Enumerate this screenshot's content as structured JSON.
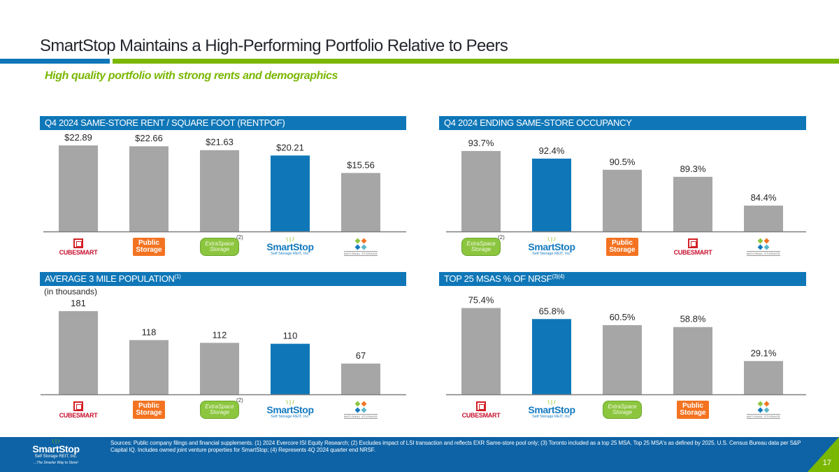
{
  "page": {
    "title": "SmartStop Maintains a High-Performing Portfolio Relative to Peers",
    "subtitle": "High quality portfolio with strong rents and demographics",
    "page_number": "17",
    "colors": {
      "brand_blue": "#0f77b8",
      "brand_green": "#7ab700",
      "bar_gray": "#a6a6a6",
      "highlight": "#0f77b8",
      "footer_blue": "#0e63a6"
    }
  },
  "panels": [
    {
      "header": "Q4 2024 SAME-STORE RENT / SQUARE FOOT (RENTPOF)",
      "header_sup": "",
      "note": ""
    },
    {
      "header": "Q4 2024 ENDING SAME-STORE OCCUPANCY",
      "header_sup": "",
      "note": ""
    },
    {
      "header": "AVERAGE 3 MILE POPULATION",
      "header_sup": "(1)",
      "note": "(in thousands)"
    },
    {
      "header": "TOP 25 MSAS % OF NRSF",
      "header_sup": "(3)(4)",
      "note": ""
    }
  ],
  "chart_data": [
    {
      "type": "bar",
      "title": "Q4 2024 SAME-STORE RENT / SQUARE FOOT (RENTPOF)",
      "categories": [
        "CubeSmart",
        "Public Storage",
        "Extra Space Storage",
        "SmartStop",
        "National Storage Affiliates"
      ],
      "values": [
        22.89,
        22.66,
        21.63,
        20.21,
        15.56
      ],
      "labels": [
        "$22.89",
        "$22.66",
        "$21.63",
        "$20.21",
        "$15.56"
      ],
      "highlight": "SmartStop",
      "footnotes": {
        "Extra Space Storage": "(2)"
      },
      "xlabel": "",
      "ylabel": "",
      "ylim": [
        0,
        24
      ]
    },
    {
      "type": "bar",
      "title": "Q4 2024 ENDING SAME-STORE OCCUPANCY",
      "categories": [
        "Extra Space Storage",
        "SmartStop",
        "Public Storage",
        "CubeSmart",
        "National Storage Affiliates"
      ],
      "values": [
        93.7,
        92.4,
        90.5,
        89.3,
        84.4
      ],
      "labels": [
        "93.7%",
        "92.4%",
        "90.5%",
        "89.3%",
        "84.4%"
      ],
      "highlight": "SmartStop",
      "footnotes": {
        "Extra Space Storage": "(2)"
      },
      "xlabel": "",
      "ylabel": "",
      "ylim": [
        80,
        95
      ]
    },
    {
      "type": "bar",
      "title": "AVERAGE 3 MILE POPULATION (in thousands)",
      "categories": [
        "CubeSmart",
        "Public Storage",
        "Extra Space Storage",
        "SmartStop",
        "National Storage Affiliates"
      ],
      "values": [
        181,
        118,
        112,
        110,
        67
      ],
      "labels": [
        "181",
        "118",
        "112",
        "110",
        "67"
      ],
      "highlight": "SmartStop",
      "footnotes": {
        "Extra Space Storage": "(2)"
      },
      "xlabel": "",
      "ylabel": "",
      "ylim": [
        0,
        190
      ]
    },
    {
      "type": "bar",
      "title": "TOP 25 MSAS % OF NRSF",
      "categories": [
        "CubeSmart",
        "SmartStop",
        "Extra Space Storage",
        "Public Storage",
        "National Storage Affiliates"
      ],
      "values": [
        75.4,
        65.8,
        60.5,
        58.8,
        29.1
      ],
      "labels": [
        "75.4%",
        "65.8%",
        "60.5%",
        "58.8%",
        "29.1%"
      ],
      "highlight": "SmartStop",
      "footnotes": {},
      "xlabel": "",
      "ylabel": "",
      "ylim": [
        0,
        80
      ]
    }
  ],
  "logos": {
    "CubeSmart": {
      "text": "CUBESMART",
      "icon": "cube-icon"
    },
    "Public Storage": {
      "line1": "Public",
      "line2": "Storage",
      "icon": "public-storage-logo"
    },
    "Extra Space Storage": {
      "line1": "ExtraSpace",
      "line2": "Storage",
      "icon": "extra-space-logo"
    },
    "SmartStop": {
      "spark": "\\ | /",
      "name": "SmartStop",
      "sub": "Self Storage REIT, Inc.",
      "icon": "smartstop-logo"
    },
    "National Storage Affiliates": {
      "text": "NATIONAL STORAGE",
      "icon": "nsa-logo"
    }
  },
  "footer": {
    "logo_name": "SmartStop",
    "logo_sub": "Self Storage REIT, Inc.",
    "tagline": "...The Smarter Way to Store!",
    "sources": "Sources: Public company filings and financial supplements. (1) 2024 Evercore ISI Equity Research; (2) Excludes impact of LSI transaction and reflects EXR Same-store pool only; (3) Toronto included as a top 25 MSA. Top 25 MSA's as defined by 2025. U.S. Census Bureau data per S&P Capital IQ. Includes owned joint venture properties for SmartStop; (4) Represents 4Q 2024 quarter end NRSF."
  }
}
